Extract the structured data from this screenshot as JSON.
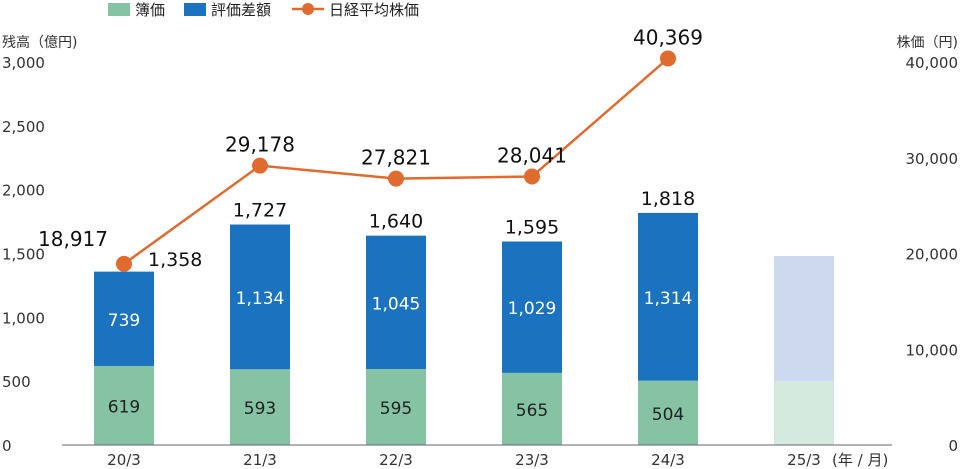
{
  "chart_data": {
    "type": "bar",
    "left_axis_title": "残高（億円)",
    "right_axis_title": "株価（円)",
    "x_unit_label": "(年 / 月)",
    "categories": [
      "20/3",
      "21/3",
      "22/3",
      "23/3",
      "24/3",
      "25/3"
    ],
    "series": [
      {
        "name": "簿価",
        "type": "bar",
        "axis": "left",
        "stack": "holdings",
        "color": "#86c3a4",
        "values": [
          619,
          593,
          595,
          565,
          504,
          null
        ],
        "labels": [
          "619",
          "593",
          "595",
          "565",
          "504",
          ""
        ]
      },
      {
        "name": "評価差額",
        "type": "bar",
        "axis": "left",
        "stack": "holdings",
        "color": "#1b72bf",
        "values": [
          739,
          1134,
          1045,
          1029,
          1314,
          null
        ],
        "labels": [
          "739",
          "1,134",
          "1,045",
          "1,029",
          "1,314",
          ""
        ]
      },
      {
        "name": "日経平均株価",
        "type": "line",
        "axis": "right",
        "color": "#e06b2f",
        "values": [
          18917,
          29178,
          27821,
          28041,
          40369,
          null
        ],
        "labels": [
          "18,917",
          "29,178",
          "27,821",
          "28,041",
          "40,369",
          ""
        ]
      }
    ],
    "totals": {
      "values": [
        1358,
        1727,
        1640,
        1595,
        1818,
        null
      ],
      "labels": [
        "1,358",
        "1,727",
        "1,640",
        "1,595",
        "1,818",
        ""
      ]
    },
    "forecast": {
      "category": "25/3",
      "bottom_value": 500,
      "total_value": 1480,
      "bottom_color": "#d4eadf",
      "top_color": "#ccd9ee"
    },
    "left_axis": {
      "ylim": [
        0,
        3000
      ],
      "ticks": [
        0,
        500,
        1000,
        1500,
        2000,
        2500,
        3000
      ],
      "tick_labels": [
        "0",
        "500",
        "1,000",
        "1,500",
        "2,000",
        "2,500",
        "3,000"
      ]
    },
    "right_axis": {
      "ylim": [
        0,
        40000
      ],
      "ticks": [
        0,
        10000,
        20000,
        30000,
        40000
      ],
      "tick_labels": [
        "0",
        "10,000",
        "20,000",
        "30,000",
        "40,000"
      ]
    },
    "legend": {
      "position": "top"
    },
    "grid": false
  }
}
